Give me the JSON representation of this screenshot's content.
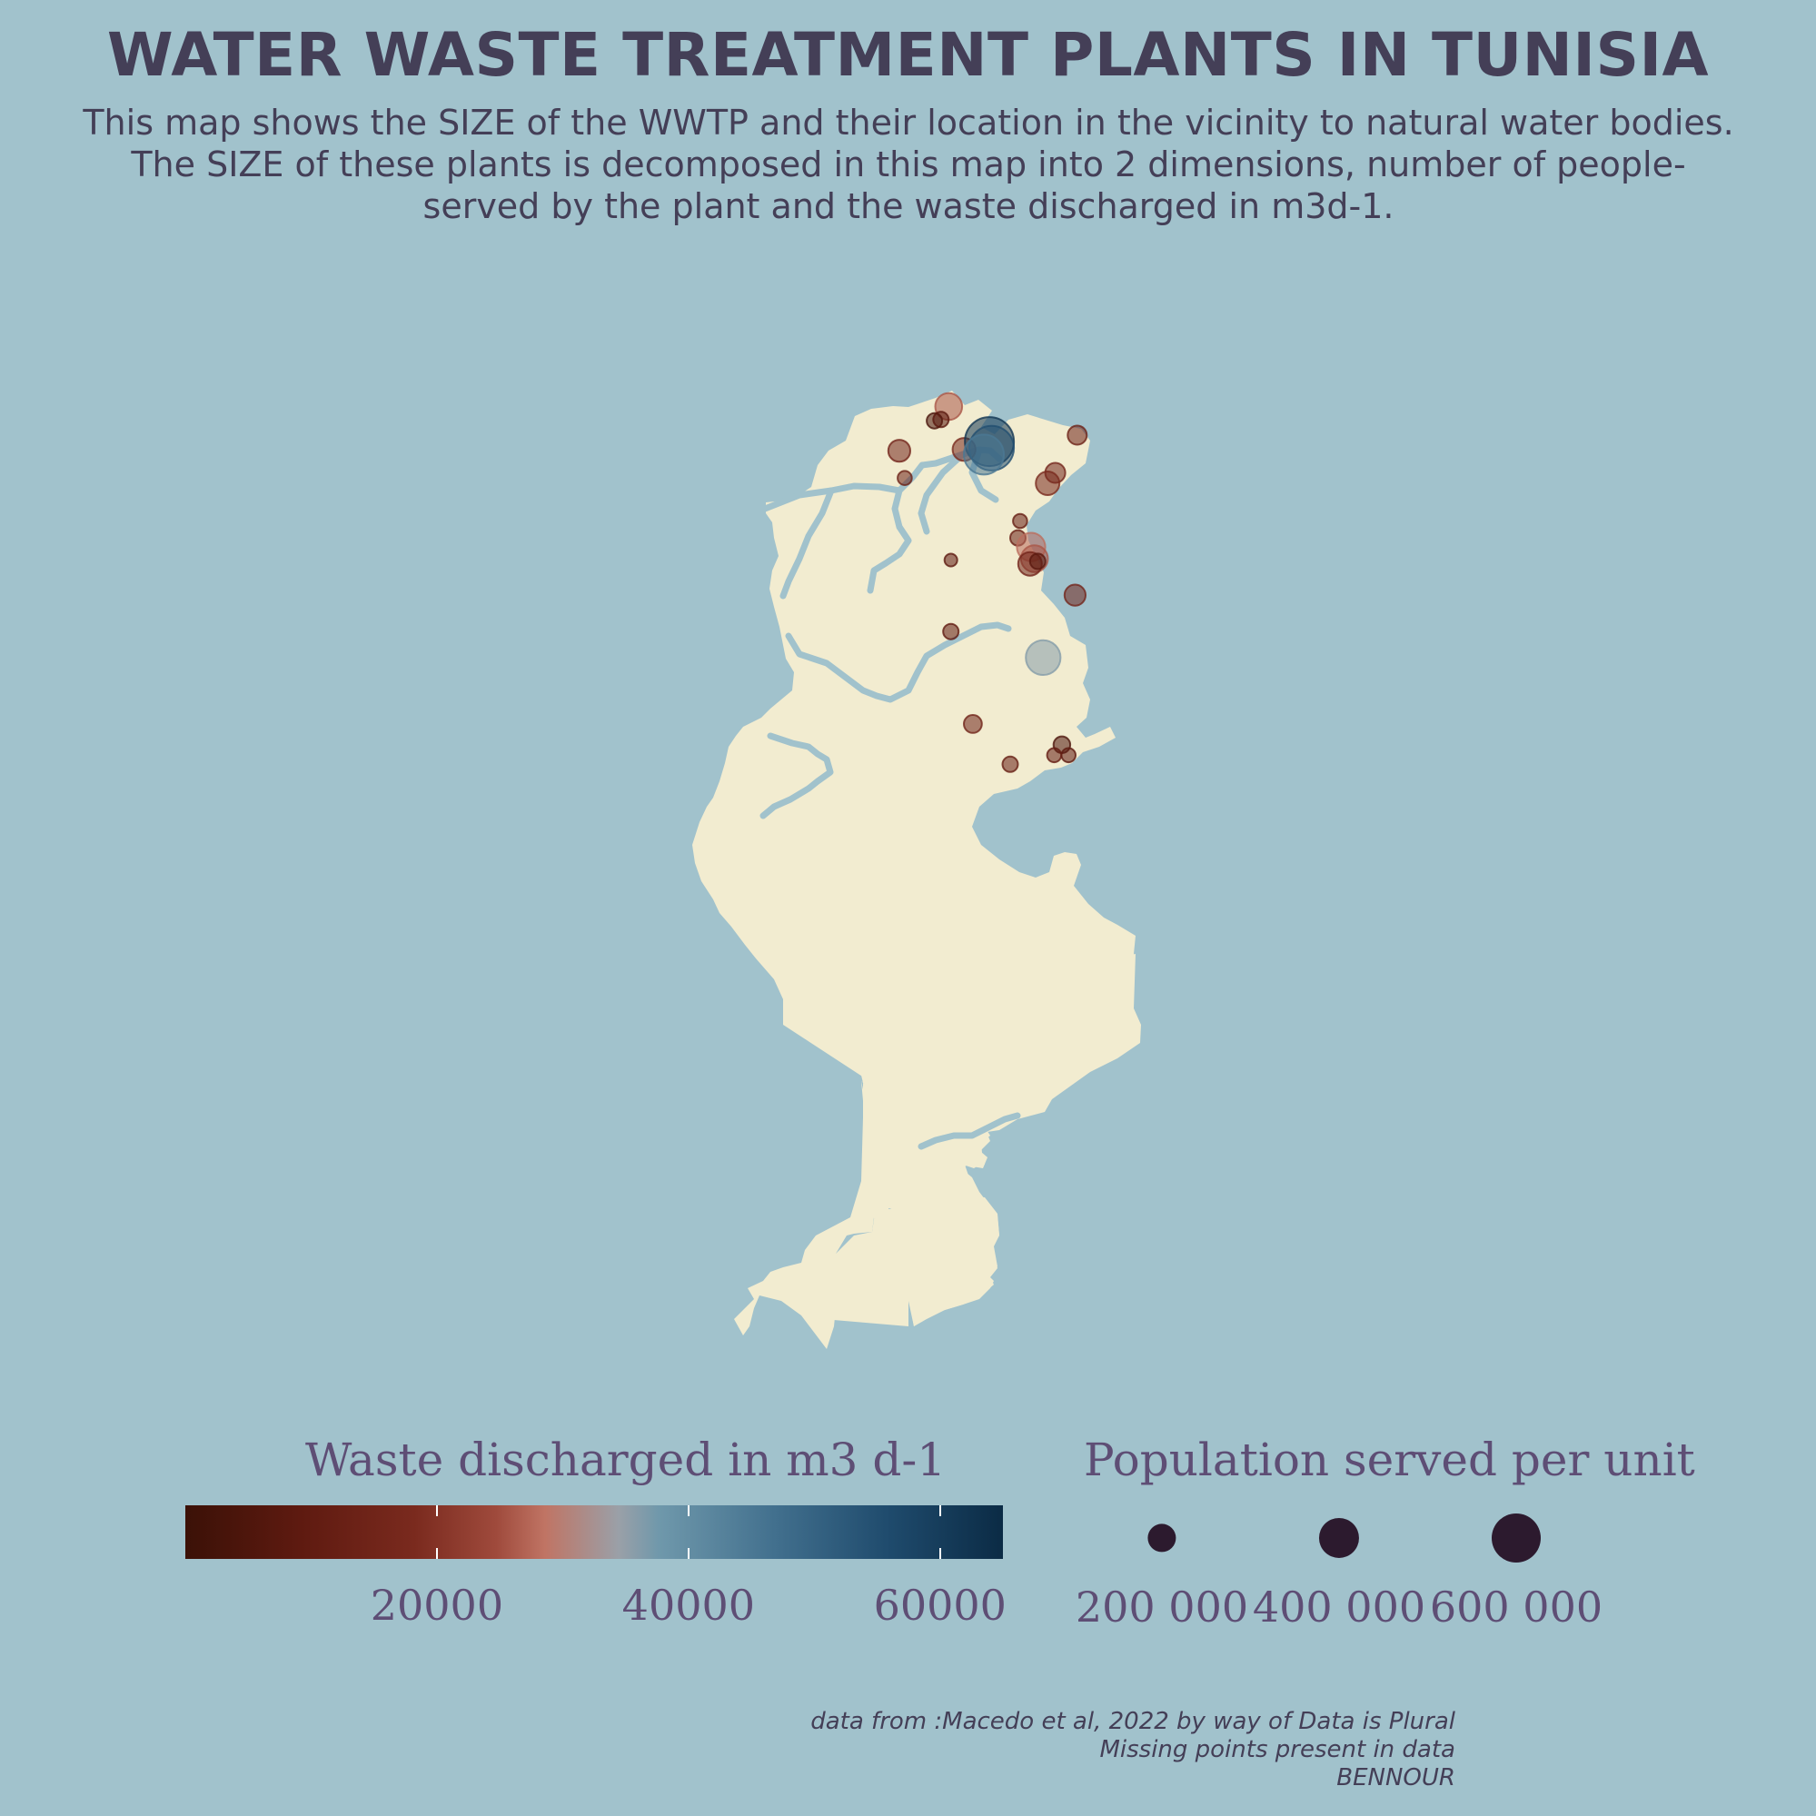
{
  "title": "WATER WASTE TREATMENT PLANTS IN TUNISIA",
  "subtitle_lines": [
    "This map shows the SIZE of the WWTP and their location in the vicinity to natural water bodies.",
    "The SIZE of these plants is decomposed in this map into 2 dimensions, number of people-",
    "served by the plant and the waste discharged in m3d-1."
  ],
  "colors": {
    "background": "#a1c2cc",
    "land": "#f2ecd0",
    "river": "#a1c2cc",
    "text": "#443f57",
    "legend_text": "#5e4e75",
    "size_dot": "#2c1a2e"
  },
  "legend_color": {
    "title": "Waste discharged in m3 d-1",
    "range": [
      0,
      65000
    ],
    "ticks": [
      {
        "value": 20000,
        "label": "20000"
      },
      {
        "value": 40000,
        "label": "40000"
      },
      {
        "value": 60000,
        "label": "60000"
      }
    ]
  },
  "legend_size": {
    "title": "Population served per unit",
    "items": [
      {
        "value": 200000,
        "label": "200 000"
      },
      {
        "value": 400000,
        "label": "400 000"
      },
      {
        "value": 600000,
        "label": "600 000"
      }
    ]
  },
  "caption_lines": [
    "data from :Macedo et al, 2022 by way of Data is Plural",
    "Missing points present in data",
    "BENNOUR"
  ],
  "map_extent": {
    "lon": [
      7.5,
      11.6
    ],
    "lat": [
      30.2,
      37.35
    ]
  },
  "plants": [
    {
      "lon": 9.85,
      "lat": 37.27,
      "waste": 26000,
      "population": 180000
    },
    {
      "lon": 9.72,
      "lat": 37.16,
      "waste": 4000,
      "population": 60000
    },
    {
      "lon": 9.78,
      "lat": 37.17,
      "waste": 8000,
      "population": 60000
    },
    {
      "lon": 9.4,
      "lat": 36.93,
      "waste": 16000,
      "population": 120000
    },
    {
      "lon": 9.45,
      "lat": 36.72,
      "waste": 14000,
      "population": 50000
    },
    {
      "lon": 9.99,
      "lat": 36.94,
      "waste": 18000,
      "population": 130000
    },
    {
      "lon": 10.22,
      "lat": 37.0,
      "waste": 62000,
      "population": 600000
    },
    {
      "lon": 10.24,
      "lat": 36.95,
      "waste": 55000,
      "population": 500000
    },
    {
      "lon": 10.17,
      "lat": 36.9,
      "waste": 45000,
      "population": 400000
    },
    {
      "lon": 11.02,
      "lat": 37.05,
      "waste": 14000,
      "population": 90000
    },
    {
      "lon": 10.82,
      "lat": 36.76,
      "waste": 16000,
      "population": 100000
    },
    {
      "lon": 10.75,
      "lat": 36.68,
      "waste": 18000,
      "population": 140000
    },
    {
      "lon": 10.5,
      "lat": 36.39,
      "waste": 12000,
      "population": 50000
    },
    {
      "lon": 10.48,
      "lat": 36.26,
      "waste": 13000,
      "population": 60000
    },
    {
      "lon": 10.6,
      "lat": 36.19,
      "waste": 28000,
      "population": 200000
    },
    {
      "lon": 10.63,
      "lat": 36.1,
      "waste": 26000,
      "population": 180000
    },
    {
      "lon": 10.59,
      "lat": 36.06,
      "waste": 16000,
      "population": 140000
    },
    {
      "lon": 10.66,
      "lat": 36.08,
      "waste": 8000,
      "population": 60000
    },
    {
      "lon": 9.87,
      "lat": 36.09,
      "waste": 9000,
      "population": 40000
    },
    {
      "lon": 11.0,
      "lat": 35.82,
      "waste": 16000,
      "population": 110000
    },
    {
      "lon": 9.87,
      "lat": 35.54,
      "waste": 10000,
      "population": 60000
    },
    {
      "lon": 10.71,
      "lat": 35.34,
      "waste": 36000,
      "population": 300000
    },
    {
      "lon": 10.07,
      "lat": 34.83,
      "waste": 15000,
      "population": 80000
    },
    {
      "lon": 10.88,
      "lat": 34.67,
      "waste": 5000,
      "population": 70000
    },
    {
      "lon": 10.94,
      "lat": 34.59,
      "waste": 9000,
      "population": 50000
    },
    {
      "lon": 10.81,
      "lat": 34.59,
      "waste": 11000,
      "population": 50000
    },
    {
      "lon": 10.41,
      "lat": 34.52,
      "waste": 12000,
      "population": 60000
    }
  ]
}
